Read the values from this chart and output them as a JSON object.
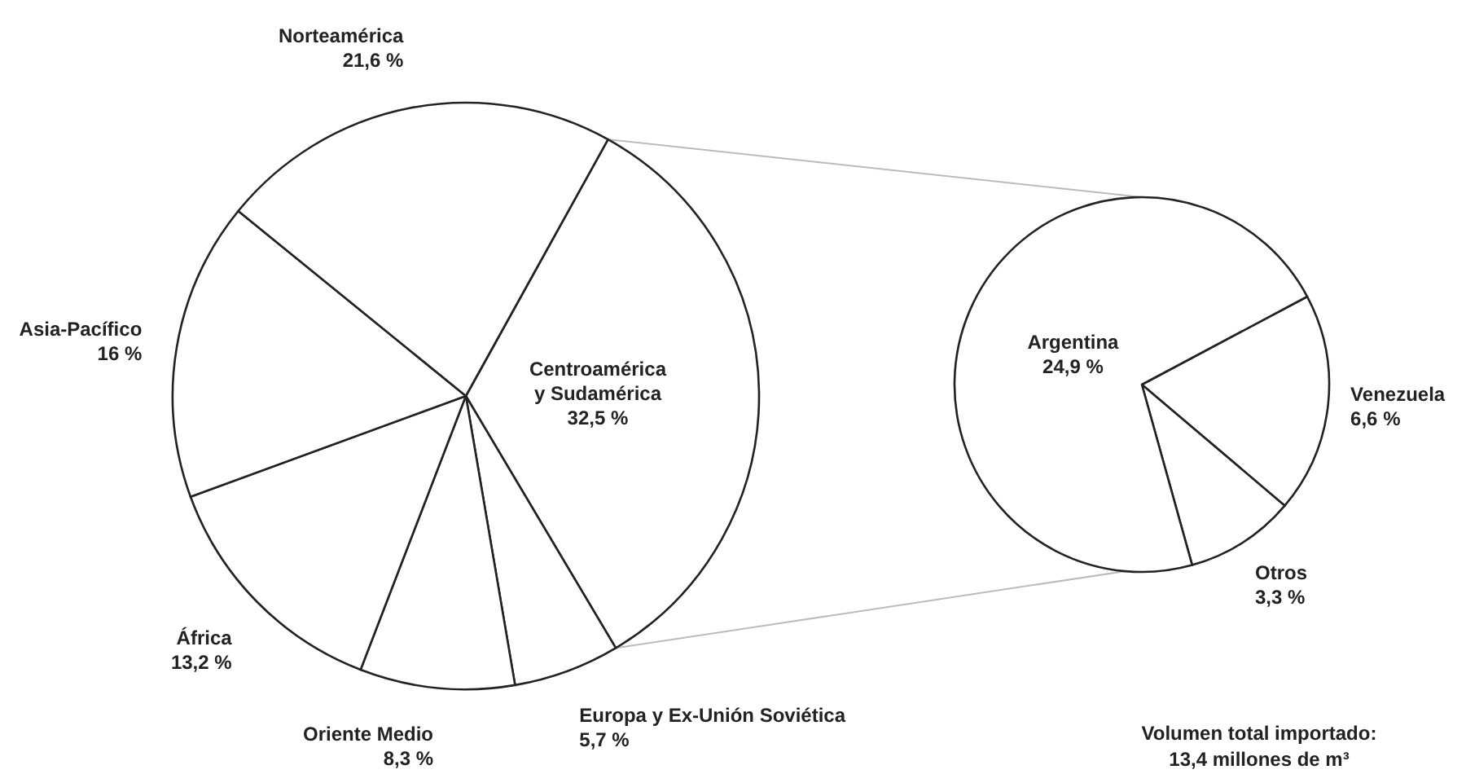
{
  "chart_data": [
    {
      "type": "pie",
      "categories": [
        "Centroamérica y Sudamérica",
        "Europa y Ex-Unión Soviética",
        "Oriente Medio",
        "África",
        "Asia-Pacífico",
        "Norteamérica"
      ],
      "values": [
        32.5,
        5.7,
        8.3,
        13.2,
        16,
        21.6
      ],
      "value_labels": [
        "32,5 %",
        "5,7 %",
        "8,3 %",
        "13,2 %",
        "16 %",
        "21,6 %"
      ],
      "colors": [
        "#ffffff",
        "#ffffff",
        "#ffffff",
        "#ffffff",
        "#ffffff",
        "#ffffff"
      ]
    },
    {
      "type": "pie",
      "categories": [
        "Venezuela",
        "Otros",
        "Argentina"
      ],
      "values": [
        6.6,
        3.3,
        24.9
      ],
      "value_labels": [
        "6,6 %",
        "3,3 %",
        "24,9 %"
      ],
      "colors": [
        "#ffffff",
        "#ffffff",
        "#ffffff"
      ],
      "annotations": [
        "Volumen total importado:",
        "13,4 millones de m³"
      ]
    }
  ]
}
